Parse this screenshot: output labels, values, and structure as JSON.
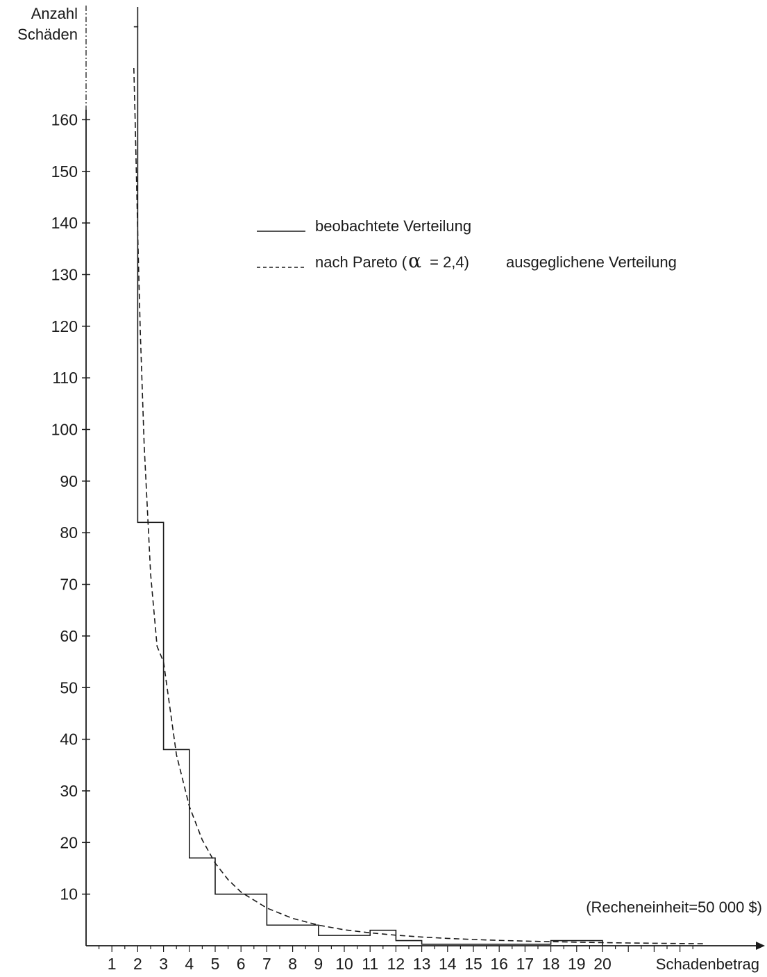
{
  "chart_data": {
    "type": "line",
    "title": "",
    "xlabel": "Schadenbetrag",
    "ylabel": "Anzahl Schäden",
    "note": "(Recheneinheit=50 000 $)",
    "x_ticks": [
      "1",
      "2",
      "3",
      "4",
      "5",
      "6",
      "7",
      "8",
      "9",
      "10",
      "11",
      "12",
      "13",
      "14",
      "15",
      "16",
      "17",
      "18",
      "19",
      "20"
    ],
    "y_ticks": [
      10,
      20,
      30,
      40,
      50,
      60,
      70,
      80,
      90,
      100,
      110,
      120,
      130,
      140,
      150,
      160
    ],
    "xlim": [
      0,
      24.4
    ],
    "ylim": [
      0,
      178
    ],
    "legend_position": "top-center",
    "series": [
      {
        "name": "beobachtete Verteilung",
        "style": "solid",
        "step": [
          {
            "x0": 1.85,
            "x1": 2,
            "y": 178
          },
          {
            "x0": 2,
            "x1": 3,
            "y": 82
          },
          {
            "x0": 3,
            "x1": 4,
            "y": 38
          },
          {
            "x0": 4,
            "x1": 5,
            "y": 17
          },
          {
            "x0": 5,
            "x1": 7,
            "y": 10
          },
          {
            "x0": 7,
            "x1": 9,
            "y": 4
          },
          {
            "x0": 9,
            "x1": 11,
            "y": 2
          },
          {
            "x0": 11,
            "x1": 12,
            "y": 3
          },
          {
            "x0": 12,
            "x1": 13,
            "y": 1
          },
          {
            "x0": 13,
            "x1": 18,
            "y": 0.3
          },
          {
            "x0": 18,
            "x1": 20,
            "y": 1
          }
        ]
      },
      {
        "name": "nach Pareto (α = 2,4) ausgeglichene Verteilung",
        "style": "dashed",
        "alpha": 2.4,
        "x": [
          1.85,
          1.9,
          2,
          2.1,
          2.25,
          2.5,
          2.75,
          3,
          3.5,
          4,
          4.5,
          5,
          5.5,
          6,
          7,
          8,
          9,
          10,
          11,
          12,
          13,
          14,
          15,
          16,
          17,
          18,
          19,
          20,
          21,
          22,
          23,
          24
        ],
        "y": [
          170,
          160,
          138,
          119,
          97,
          72,
          58,
          55,
          37,
          27,
          20.5,
          16,
          12.8,
          10.4,
          7.3,
          5.3,
          4.0,
          3.1,
          2.5,
          2.05,
          1.7,
          1.43,
          1.21,
          1.04,
          0.9,
          0.79,
          0.69,
          0.61,
          0.54,
          0.48,
          0.43,
          0.39
        ]
      }
    ]
  },
  "legend": {
    "solid_label": "beobachtete Verteilung",
    "dashed_prefix": "nach Pareto (",
    "alpha_symbol": "α",
    "dashed_formula": " = 2,4)",
    "dashed_suffix": "ausgeglichene Verteilung"
  },
  "axes": {
    "y_title_line1": "Anzahl",
    "y_title_line2": "Schäden",
    "x_title": "Schadenbetrag"
  },
  "colors": {
    "ink": "#1a1a1a",
    "background": "#ffffff"
  }
}
